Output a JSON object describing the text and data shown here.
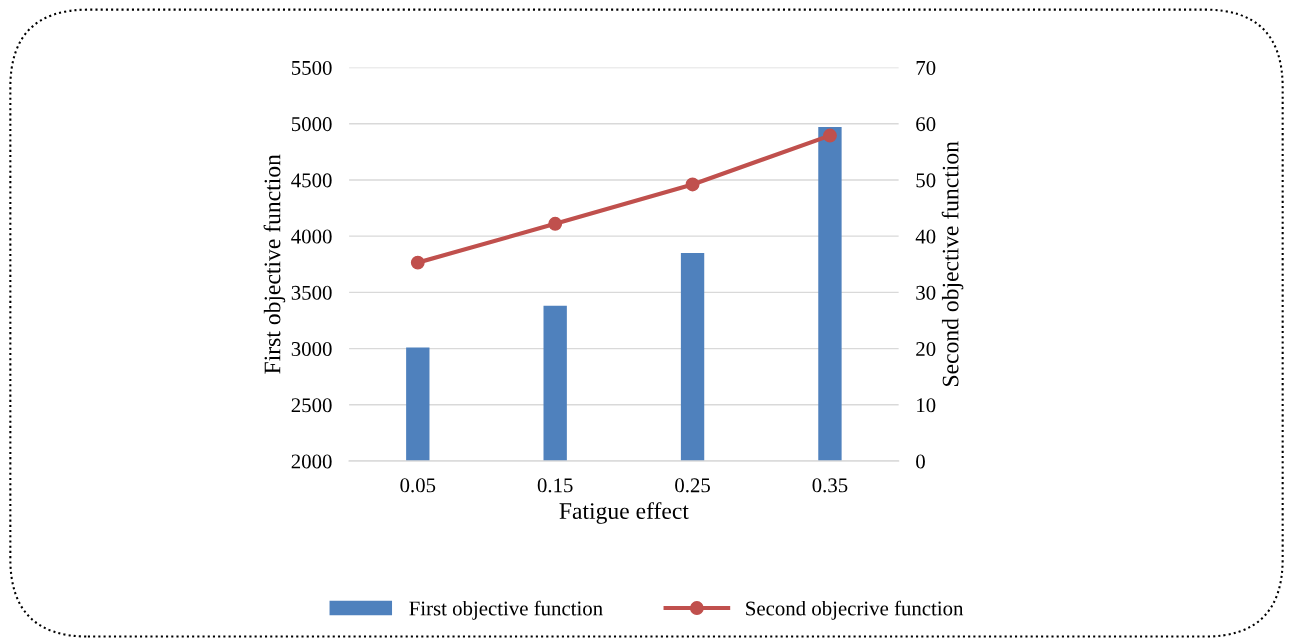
{
  "chart_data": {
    "type": "bar",
    "xlabel": "Fatigue effect",
    "ylabel": "First objective function",
    "y2label": "Second objective function",
    "categories": [
      "0.05",
      "0.15",
      "0.25",
      "0.35"
    ],
    "series": [
      {
        "name": "First objective function",
        "color": "#4f81bd",
        "values": [
          3010,
          3380,
          3850,
          4970
        ]
      },
      {
        "name": "Second objecrive function",
        "color": "#c0504d",
        "type": "line",
        "axis": "y2",
        "values": [
          35.3,
          42.2,
          49.2,
          57.9
        ]
      }
    ],
    "ylim": [
      2000,
      5500
    ],
    "yticks": [
      2000,
      2500,
      3000,
      3500,
      4000,
      4500,
      5000,
      5500
    ],
    "y2lim": [
      0,
      70
    ],
    "y2ticks": [
      0,
      10,
      20,
      30,
      40,
      50,
      60,
      70
    ],
    "grid": "y",
    "legend": "bottom",
    "marker": "circle",
    "line_style": "solid"
  }
}
